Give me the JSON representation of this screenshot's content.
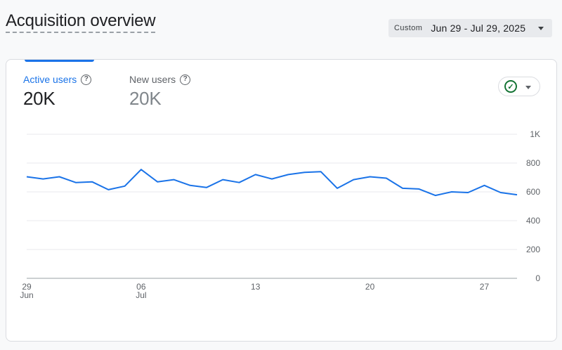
{
  "header": {
    "title": "Acquisition overview"
  },
  "date_range": {
    "chip_label": "Custom",
    "range_label": "Jun 29 - Jul 29, 2025"
  },
  "metrics": [
    {
      "label": "Active users",
      "value": "20K",
      "active": true
    },
    {
      "label": "New users",
      "value": "20K",
      "active": false
    }
  ],
  "status": {
    "icon": "check-circle-icon",
    "color": "#137333"
  },
  "colors": {
    "line": "#1a73e8",
    "grid": "#e8eaed",
    "axis": "#9aa0a6"
  },
  "chart_data": {
    "type": "line",
    "ylim": [
      0,
      1000
    ],
    "y_ticks": [
      0,
      200,
      400,
      600,
      800,
      1000
    ],
    "y_tick_labels": [
      "0",
      "200",
      "400",
      "600",
      "800",
      "1K"
    ],
    "x_tick_labels": [
      {
        "day": "29",
        "month": "Jun",
        "index": 0
      },
      {
        "day": "06",
        "month": "Jul",
        "index": 7
      },
      {
        "day": "13",
        "month": "",
        "index": 14
      },
      {
        "day": "20",
        "month": "",
        "index": 21
      },
      {
        "day": "27",
        "month": "",
        "index": 28
      }
    ],
    "series": [
      {
        "values": [
          705,
          690,
          705,
          665,
          670,
          615,
          640,
          755,
          670,
          685,
          645,
          630,
          685,
          665,
          720,
          690,
          720,
          735,
          740,
          625,
          685,
          705,
          695,
          625,
          620,
          575,
          600,
          595,
          645,
          595,
          580
        ]
      }
    ]
  }
}
